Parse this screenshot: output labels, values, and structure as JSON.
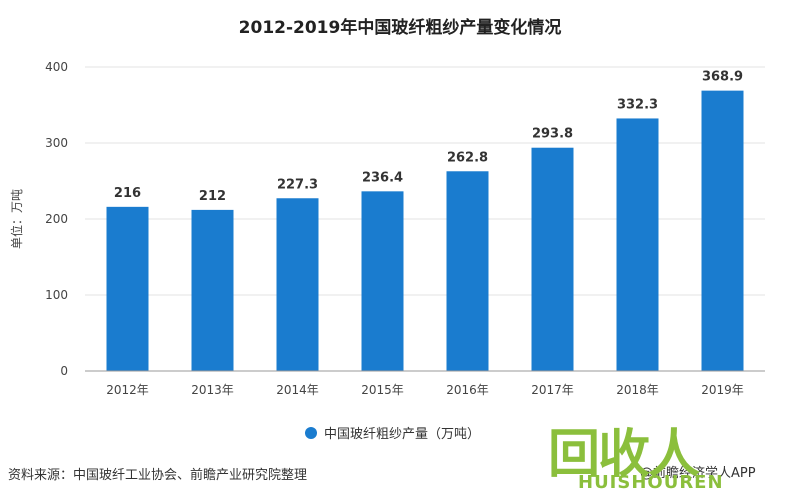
{
  "chart_data": {
    "type": "bar",
    "title": "2012-2019年中国玻纤粗纱产量变化情况",
    "ylabel": "单位：万吨",
    "xlabel": "",
    "categories": [
      "2012年",
      "2013年",
      "2014年",
      "2015年",
      "2016年",
      "2017年",
      "2018年",
      "2019年"
    ],
    "series": [
      {
        "name": "中国玻纤粗纱产量（万吨）",
        "values": [
          216,
          212,
          227.3,
          236.4,
          262.8,
          293.8,
          332.3,
          368.9
        ],
        "labels": [
          "216",
          "212",
          "227.3",
          "236.4",
          "262.8",
          "293.8",
          "332.3",
          "368.9"
        ]
      }
    ],
    "ylim": [
      0,
      400
    ],
    "yticks": [
      0,
      100,
      200,
      300,
      400
    ],
    "grid": true,
    "legend_position": "bottom",
    "bar_color": "#1a7ccf"
  },
  "footer": {
    "source": "资料来源：中国玻纤工业协会、前瞻产业研究院整理",
    "credit": "@前瞻经济学人APP"
  },
  "watermark": {
    "logo_text": "回收人",
    "logo_subtext": "HUISHOUREN",
    "color": "#8bbf3c"
  }
}
